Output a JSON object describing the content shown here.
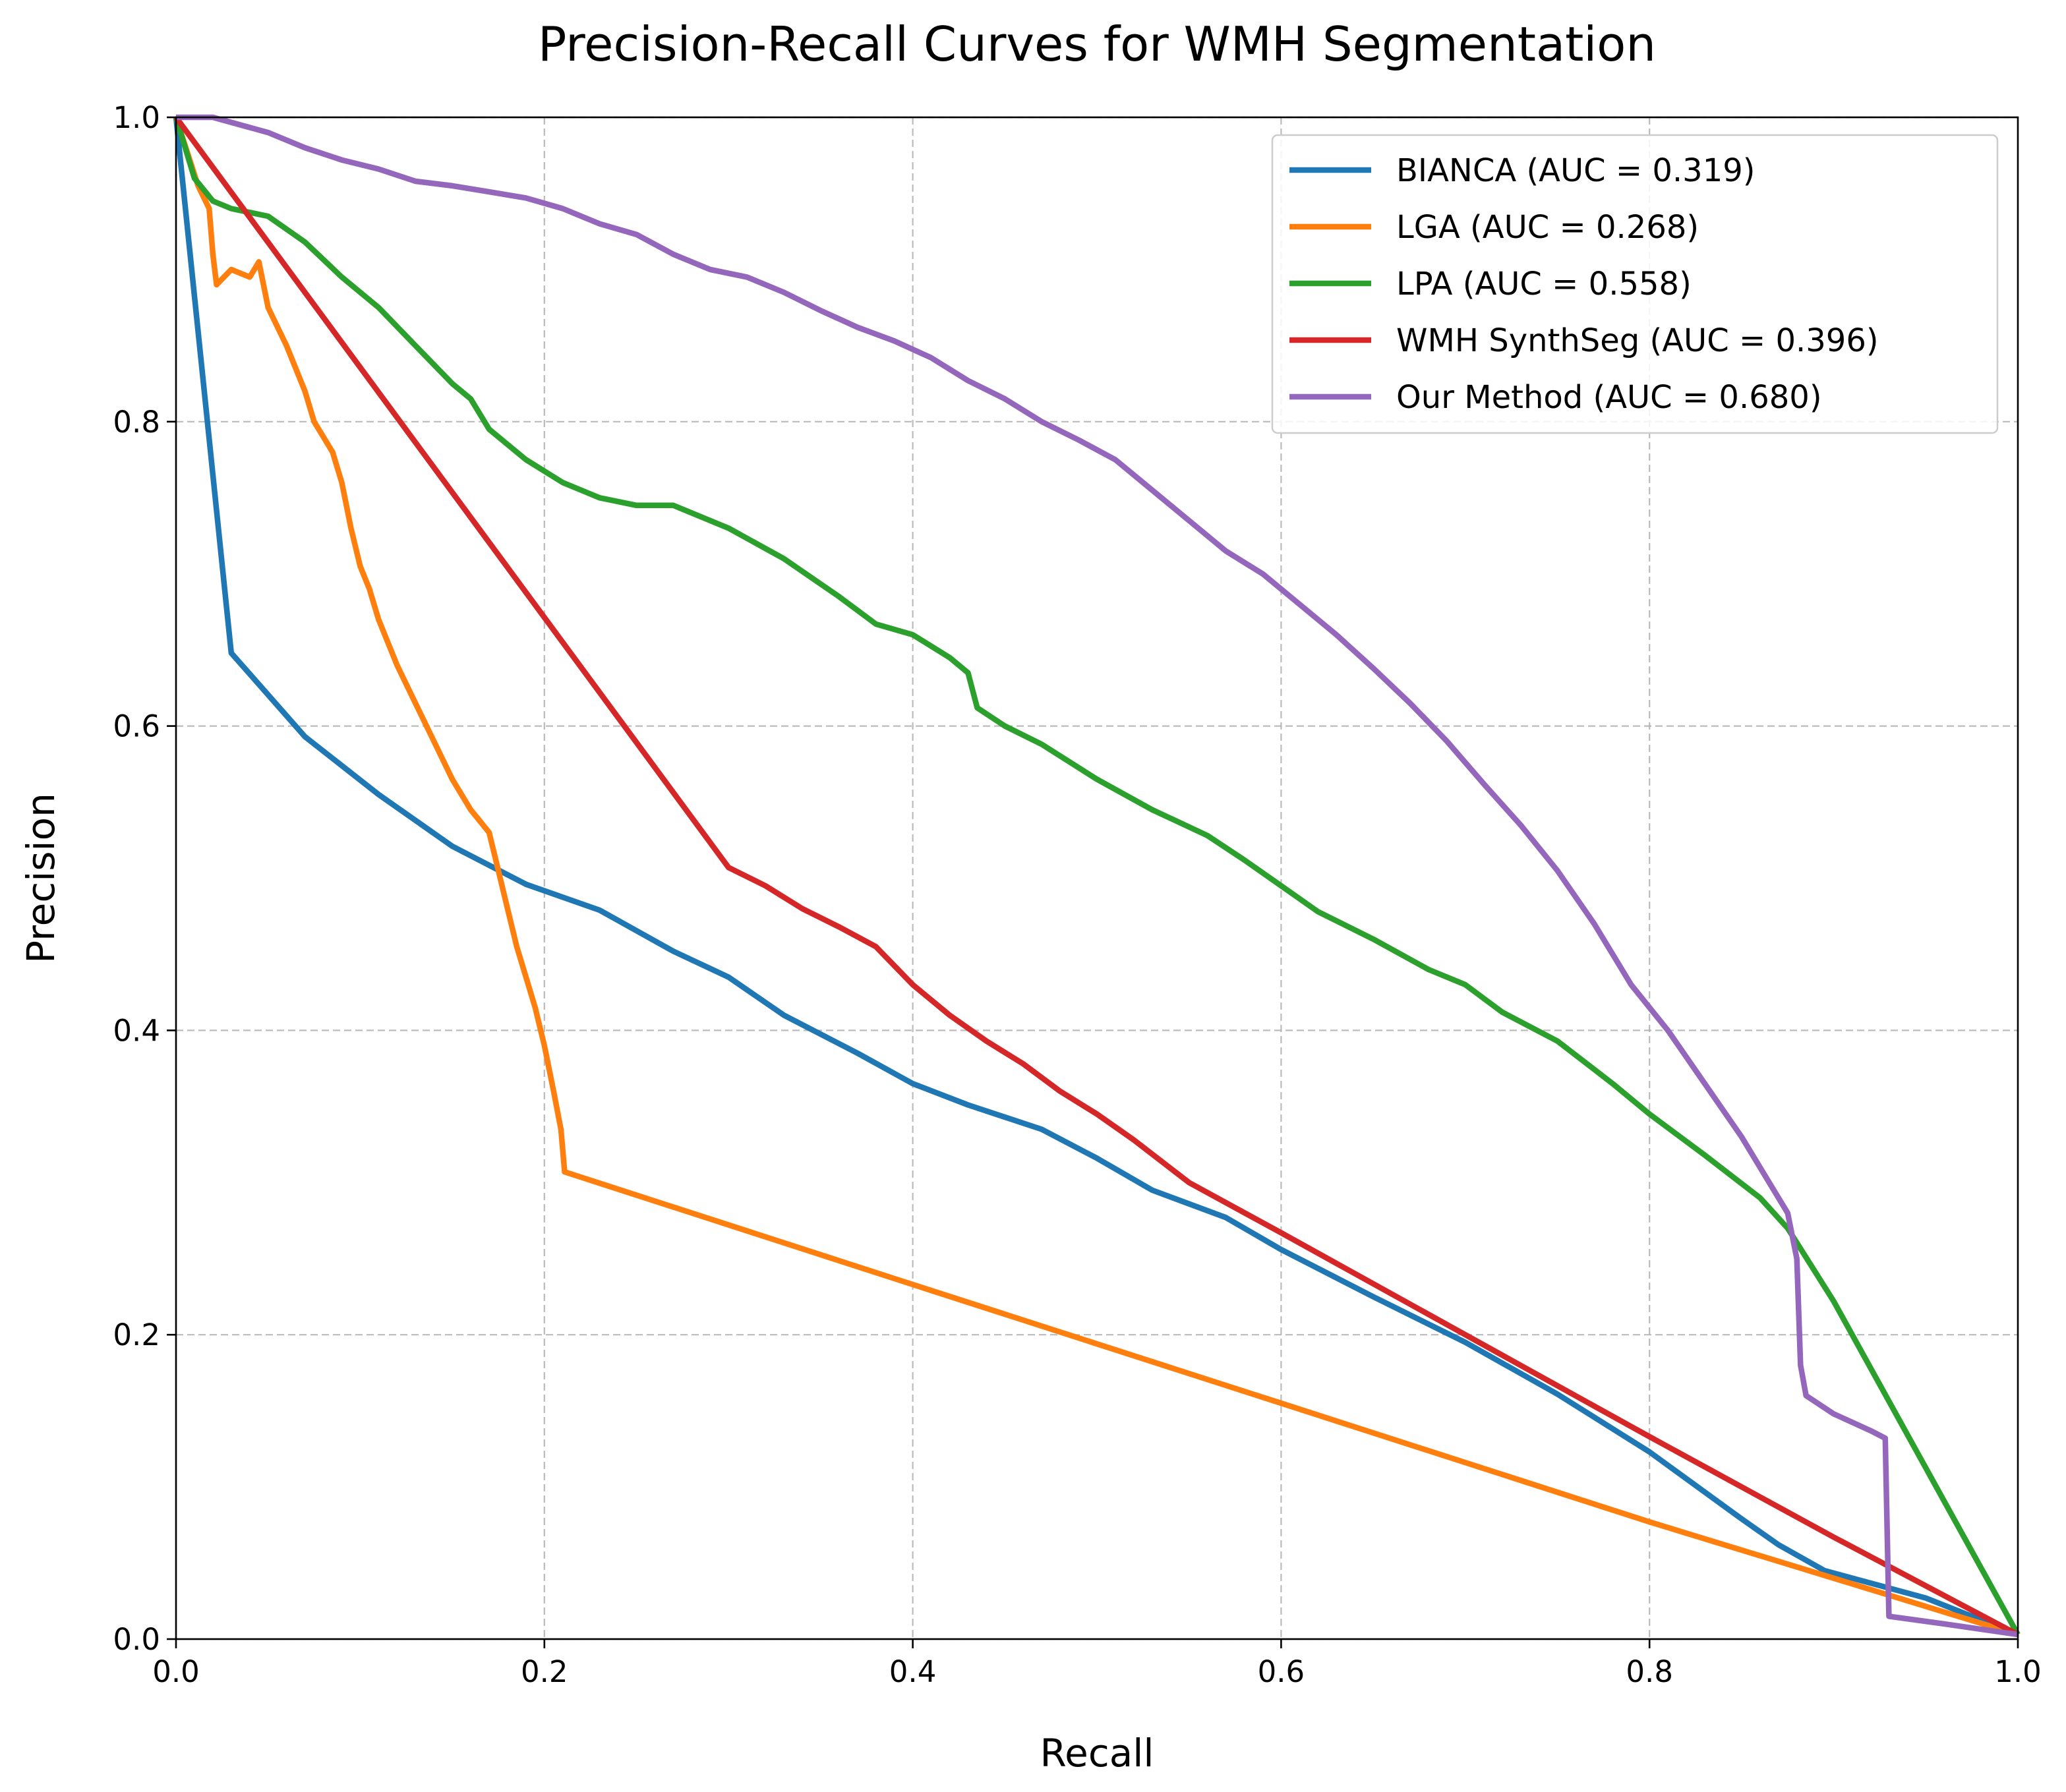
{
  "chart_data": {
    "type": "line",
    "title": "Precision-Recall Curves for WMH Segmentation",
    "xlabel": "Recall",
    "ylabel": "Precision",
    "xlim": [
      0,
      1
    ],
    "ylim": [
      0,
      1
    ],
    "xticks": [
      "0.0",
      "0.2",
      "0.4",
      "0.6",
      "0.8",
      "1.0"
    ],
    "yticks": [
      "0.0",
      "0.2",
      "0.4",
      "0.6",
      "0.8",
      "1.0"
    ],
    "grid": true,
    "legend_position": "upper right",
    "series": [
      {
        "name": "BIANCA (AUC = 0.319)",
        "color": "#1f77b4",
        "points": [
          [
            0.0,
            1.0
          ],
          [
            0.03,
            0.648
          ],
          [
            0.07,
            0.593
          ],
          [
            0.11,
            0.555
          ],
          [
            0.15,
            0.521
          ],
          [
            0.19,
            0.496
          ],
          [
            0.23,
            0.479
          ],
          [
            0.27,
            0.452
          ],
          [
            0.3,
            0.435
          ],
          [
            0.33,
            0.41
          ],
          [
            0.37,
            0.385
          ],
          [
            0.4,
            0.365
          ],
          [
            0.43,
            0.351
          ],
          [
            0.47,
            0.335
          ],
          [
            0.5,
            0.316
          ],
          [
            0.53,
            0.295
          ],
          [
            0.57,
            0.277
          ],
          [
            0.6,
            0.256
          ],
          [
            0.65,
            0.225
          ],
          [
            0.7,
            0.195
          ],
          [
            0.75,
            0.161
          ],
          [
            0.8,
            0.123
          ],
          [
            0.85,
            0.079
          ],
          [
            0.87,
            0.062
          ],
          [
            0.895,
            0.045
          ],
          [
            0.95,
            0.027
          ],
          [
            1.0,
            0.003
          ]
        ]
      },
      {
        "name": "LGA (AUC = 0.268)",
        "color": "#ff7f0e",
        "points": [
          [
            0.0,
            1.0
          ],
          [
            0.008,
            0.97
          ],
          [
            0.012,
            0.955
          ],
          [
            0.018,
            0.94
          ],
          [
            0.02,
            0.91
          ],
          [
            0.022,
            0.89
          ],
          [
            0.03,
            0.9
          ],
          [
            0.04,
            0.895
          ],
          [
            0.045,
            0.905
          ],
          [
            0.05,
            0.875
          ],
          [
            0.06,
            0.85
          ],
          [
            0.07,
            0.82
          ],
          [
            0.075,
            0.8
          ],
          [
            0.085,
            0.78
          ],
          [
            0.09,
            0.76
          ],
          [
            0.095,
            0.73
          ],
          [
            0.1,
            0.705
          ],
          [
            0.105,
            0.69
          ],
          [
            0.11,
            0.67
          ],
          [
            0.12,
            0.64
          ],
          [
            0.13,
            0.615
          ],
          [
            0.14,
            0.59
          ],
          [
            0.15,
            0.565
          ],
          [
            0.16,
            0.545
          ],
          [
            0.17,
            0.53
          ],
          [
            0.175,
            0.505
          ],
          [
            0.18,
            0.48
          ],
          [
            0.185,
            0.455
          ],
          [
            0.19,
            0.435
          ],
          [
            0.195,
            0.415
          ],
          [
            0.2,
            0.39
          ],
          [
            0.205,
            0.36
          ],
          [
            0.209,
            0.335
          ],
          [
            0.211,
            0.307
          ],
          [
            0.4,
            0.233
          ],
          [
            0.6,
            0.155
          ],
          [
            0.8,
            0.077
          ],
          [
            1.0,
            0.003
          ]
        ]
      },
      {
        "name": "LPA (AUC = 0.558)",
        "color": "#2ca02c",
        "points": [
          [
            0.0,
            1.0
          ],
          [
            0.01,
            0.96
          ],
          [
            0.02,
            0.945
          ],
          [
            0.03,
            0.94
          ],
          [
            0.05,
            0.935
          ],
          [
            0.07,
            0.918
          ],
          [
            0.09,
            0.895
          ],
          [
            0.11,
            0.875
          ],
          [
            0.13,
            0.85
          ],
          [
            0.15,
            0.825
          ],
          [
            0.16,
            0.815
          ],
          [
            0.17,
            0.795
          ],
          [
            0.19,
            0.775
          ],
          [
            0.21,
            0.76
          ],
          [
            0.23,
            0.75
          ],
          [
            0.25,
            0.745
          ],
          [
            0.27,
            0.745
          ],
          [
            0.3,
            0.73
          ],
          [
            0.33,
            0.71
          ],
          [
            0.36,
            0.685
          ],
          [
            0.38,
            0.667
          ],
          [
            0.4,
            0.66
          ],
          [
            0.42,
            0.645
          ],
          [
            0.43,
            0.635
          ],
          [
            0.435,
            0.612
          ],
          [
            0.45,
            0.6
          ],
          [
            0.47,
            0.588
          ],
          [
            0.5,
            0.565
          ],
          [
            0.53,
            0.545
          ],
          [
            0.56,
            0.528
          ],
          [
            0.58,
            0.512
          ],
          [
            0.6,
            0.495
          ],
          [
            0.62,
            0.478
          ],
          [
            0.65,
            0.46
          ],
          [
            0.68,
            0.44
          ],
          [
            0.7,
            0.43
          ],
          [
            0.72,
            0.412
          ],
          [
            0.75,
            0.393
          ],
          [
            0.78,
            0.365
          ],
          [
            0.8,
            0.345
          ],
          [
            0.83,
            0.318
          ],
          [
            0.86,
            0.29
          ],
          [
            0.875,
            0.27
          ],
          [
            0.9,
            0.222
          ],
          [
            1.0,
            0.003
          ]
        ]
      },
      {
        "name": "WMH SynthSeg (AUC = 0.396)",
        "color": "#d62728",
        "points": [
          [
            0.0,
            1.0
          ],
          [
            0.3,
            0.507
          ],
          [
            0.32,
            0.495
          ],
          [
            0.34,
            0.48
          ],
          [
            0.36,
            0.468
          ],
          [
            0.38,
            0.455
          ],
          [
            0.4,
            0.43
          ],
          [
            0.42,
            0.41
          ],
          [
            0.44,
            0.393
          ],
          [
            0.46,
            0.378
          ],
          [
            0.48,
            0.36
          ],
          [
            0.5,
            0.345
          ],
          [
            0.52,
            0.328
          ],
          [
            0.55,
            0.3
          ],
          [
            0.6,
            0.267
          ],
          [
            0.7,
            0.2
          ],
          [
            0.8,
            0.133
          ],
          [
            0.9,
            0.067
          ],
          [
            1.0,
            0.003
          ]
        ]
      },
      {
        "name": "Our Method (AUC = 0.680)",
        "color": "#9467bd",
        "points": [
          [
            0.0,
            1.0
          ],
          [
            0.02,
            1.0
          ],
          [
            0.05,
            0.99
          ],
          [
            0.07,
            0.98
          ],
          [
            0.09,
            0.972
          ],
          [
            0.11,
            0.966
          ],
          [
            0.13,
            0.958
          ],
          [
            0.15,
            0.955
          ],
          [
            0.17,
            0.951
          ],
          [
            0.19,
            0.947
          ],
          [
            0.21,
            0.94
          ],
          [
            0.23,
            0.93
          ],
          [
            0.25,
            0.923
          ],
          [
            0.27,
            0.91
          ],
          [
            0.29,
            0.9
          ],
          [
            0.31,
            0.895
          ],
          [
            0.33,
            0.885
          ],
          [
            0.35,
            0.873
          ],
          [
            0.37,
            0.862
          ],
          [
            0.39,
            0.853
          ],
          [
            0.41,
            0.842
          ],
          [
            0.43,
            0.827
          ],
          [
            0.45,
            0.815
          ],
          [
            0.47,
            0.8
          ],
          [
            0.49,
            0.788
          ],
          [
            0.51,
            0.775
          ],
          [
            0.53,
            0.755
          ],
          [
            0.55,
            0.735
          ],
          [
            0.57,
            0.715
          ],
          [
            0.59,
            0.7
          ],
          [
            0.61,
            0.68
          ],
          [
            0.63,
            0.66
          ],
          [
            0.65,
            0.638
          ],
          [
            0.67,
            0.615
          ],
          [
            0.69,
            0.59
          ],
          [
            0.71,
            0.562
          ],
          [
            0.73,
            0.535
          ],
          [
            0.75,
            0.505
          ],
          [
            0.77,
            0.47
          ],
          [
            0.79,
            0.43
          ],
          [
            0.81,
            0.4
          ],
          [
            0.83,
            0.365
          ],
          [
            0.85,
            0.33
          ],
          [
            0.865,
            0.3
          ],
          [
            0.875,
            0.28
          ],
          [
            0.88,
            0.25
          ],
          [
            0.882,
            0.18
          ],
          [
            0.885,
            0.16
          ],
          [
            0.9,
            0.148
          ],
          [
            0.92,
            0.137
          ],
          [
            0.928,
            0.132
          ],
          [
            0.93,
            0.015
          ],
          [
            0.96,
            0.01
          ],
          [
            1.0,
            0.003
          ]
        ]
      }
    ]
  }
}
